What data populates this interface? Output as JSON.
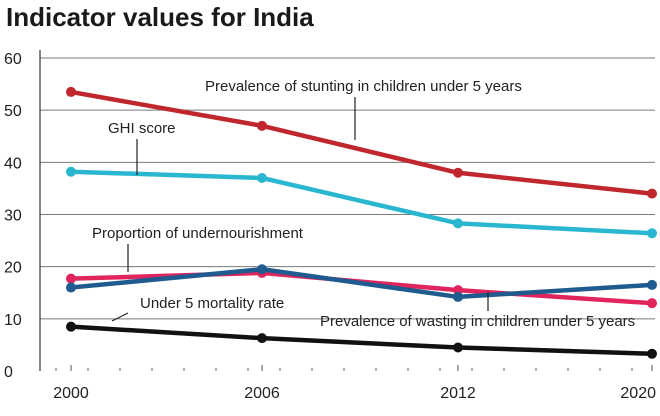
{
  "chart_data": {
    "type": "line",
    "title": "Indicator values for India",
    "xlabel": "",
    "ylabel": "",
    "x": [
      2000,
      2006,
      2012,
      2020
    ],
    "x_tick_labels": [
      "2000",
      "2006",
      "2012",
      "2020"
    ],
    "ylim": [
      0,
      60
    ],
    "y_ticks": [
      0,
      10,
      20,
      30,
      40,
      50,
      60
    ],
    "y_tick_labels": [
      "0",
      "10",
      "20",
      "30",
      "40",
      "50",
      "60"
    ],
    "grid": true,
    "legend": "inline labels",
    "series": [
      {
        "name": "Prevalence of stunting in children under 5 years",
        "color": "#c0272d",
        "values": [
          53.5,
          47.0,
          38.0,
          34.0
        ]
      },
      {
        "name": "GHI score",
        "color": "#29b7cf",
        "values": [
          38.2,
          37.0,
          28.3,
          26.4
        ]
      },
      {
        "name": "Proportion of undernourishment",
        "color": "#e0245e",
        "values": [
          17.7,
          18.8,
          15.5,
          13.0
        ]
      },
      {
        "name": "Prevalence of wasting in children under 5 years",
        "color": "#1f5b8e",
        "values": [
          16.0,
          19.5,
          14.2,
          16.5
        ]
      },
      {
        "name": "Under 5 mortality rate",
        "color": "#111111",
        "values": [
          8.5,
          6.3,
          4.5,
          3.3
        ]
      }
    ]
  }
}
